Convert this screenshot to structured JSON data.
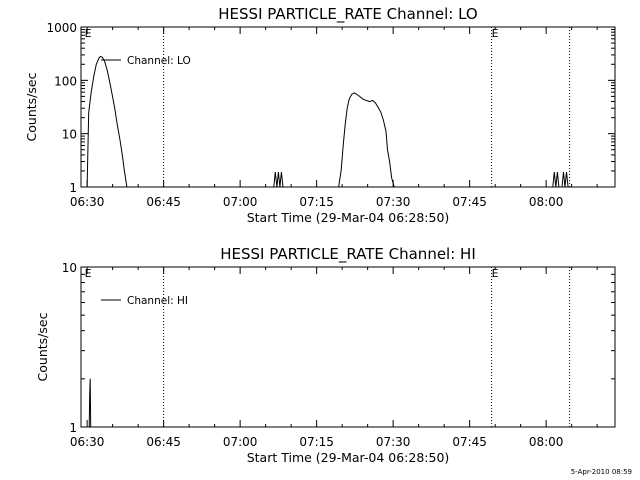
{
  "colors": {
    "background": "#ffffff",
    "foreground": "#000000"
  },
  "footer": {
    "timestamp": "5-Apr-2010 08:59"
  },
  "chart_data": [
    {
      "type": "line",
      "title": "HESSI PARTICLE_RATE Channel: LO",
      "xlabel": "Start Time (29-Mar-04 06:28:50)",
      "ylabel": "Counts/sec",
      "yscale": "log",
      "ylim": [
        1,
        1000
      ],
      "xlim_minutes_after_0630": [
        -1.2,
        103.5
      ],
      "y_ticks": [
        {
          "label": "1",
          "value": 1
        },
        {
          "label": "10",
          "value": 10
        },
        {
          "label": "100",
          "value": 100
        },
        {
          "label": "1000",
          "value": 1000
        }
      ],
      "x_ticks": [
        {
          "label": "06:30",
          "value": 0
        },
        {
          "label": "06:45",
          "value": 15
        },
        {
          "label": "07:00",
          "value": 30
        },
        {
          "label": "07:15",
          "value": 45
        },
        {
          "label": "07:30",
          "value": 60
        },
        {
          "label": "07:45",
          "value": 75
        },
        {
          "label": "08:00",
          "value": 90
        }
      ],
      "vertical_markers_minutes": [
        15,
        79.3,
        94.6
      ],
      "flags": [
        {
          "label": "E",
          "minute": -0.5
        },
        {
          "label": "E",
          "minute": 79.3
        }
      ],
      "legend": {
        "position": "top-left"
      },
      "series": [
        {
          "name": "Channel: LO",
          "segments": [
            [
              [
                0,
                1
              ],
              [
                0.3,
                25
              ],
              [
                0.8,
                60
              ],
              [
                1.3,
                120
              ],
              [
                1.8,
                200
              ],
              [
                2.3,
                260
              ],
              [
                2.6,
                280
              ],
              [
                3.0,
                270
              ],
              [
                3.4,
                230
              ],
              [
                3.9,
                160
              ],
              [
                4.4,
                95
              ],
              [
                4.9,
                55
              ],
              [
                5.4,
                30
              ],
              [
                5.9,
                15
              ],
              [
                6.4,
                8
              ],
              [
                6.9,
                4
              ],
              [
                7.3,
                2
              ],
              [
                7.8,
                1
              ]
            ],
            [
              [
                36.6,
                1
              ],
              [
                36.9,
                1.9
              ],
              [
                37.2,
                1
              ],
              [
                37.5,
                1.9
              ],
              [
                37.8,
                1
              ],
              [
                38.1,
                1.9
              ],
              [
                38.4,
                1
              ]
            ],
            [
              [
                49.3,
                1
              ],
              [
                49.8,
                2
              ],
              [
                50.2,
                6
              ],
              [
                50.6,
                15
              ],
              [
                51.0,
                30
              ],
              [
                51.4,
                45
              ],
              [
                51.9,
                55
              ],
              [
                52.4,
                58
              ],
              [
                53.2,
                52
              ],
              [
                54.0,
                45
              ],
              [
                54.7,
                42
              ],
              [
                55.4,
                40
              ],
              [
                56.0,
                42
              ],
              [
                56.5,
                38
              ],
              [
                57.0,
                32
              ],
              [
                57.6,
                25
              ],
              [
                58.1,
                18
              ],
              [
                58.6,
                11
              ],
              [
                58.9,
                5
              ],
              [
                59.3,
                3
              ],
              [
                59.7,
                1.5
              ],
              [
                60.2,
                1
              ]
            ],
            [
              [
                91.3,
                1
              ],
              [
                91.6,
                1.9
              ],
              [
                91.9,
                1
              ],
              [
                92.2,
                1.9
              ],
              [
                92.5,
                1
              ]
            ],
            [
              [
                93.1,
                1
              ],
              [
                93.4,
                1.9
              ],
              [
                93.7,
                1
              ],
              [
                94.0,
                1.9
              ],
              [
                94.3,
                1
              ]
            ]
          ]
        }
      ]
    },
    {
      "type": "line",
      "title": "HESSI PARTICLE_RATE Channel: HI",
      "xlabel": "Start Time (29-Mar-04 06:28:50)",
      "ylabel": "Counts/sec",
      "yscale": "log",
      "ylim": [
        1,
        10
      ],
      "xlim_minutes_after_0630": [
        -1.2,
        103.5
      ],
      "y_ticks": [
        {
          "label": "1",
          "value": 1
        },
        {
          "label": "10",
          "value": 10
        }
      ],
      "x_ticks": [
        {
          "label": "06:30",
          "value": 0
        },
        {
          "label": "06:45",
          "value": 15
        },
        {
          "label": "07:00",
          "value": 30
        },
        {
          "label": "07:15",
          "value": 45
        },
        {
          "label": "07:30",
          "value": 60
        },
        {
          "label": "07:45",
          "value": 75
        },
        {
          "label": "08:00",
          "value": 90
        }
      ],
      "vertical_markers_minutes": [
        15,
        79.3,
        94.6
      ],
      "flags": [
        {
          "label": "E",
          "minute": -0.5
        },
        {
          "label": "E",
          "minute": 79.3
        }
      ],
      "legend": {
        "position": "top-left"
      },
      "series": [
        {
          "name": "Channel: HI",
          "segments": [
            [
              [
                0.4,
                1
              ],
              [
                0.5,
                1.6
              ],
              [
                0.6,
                2.0
              ],
              [
                0.7,
                1
              ]
            ]
          ]
        }
      ]
    }
  ]
}
